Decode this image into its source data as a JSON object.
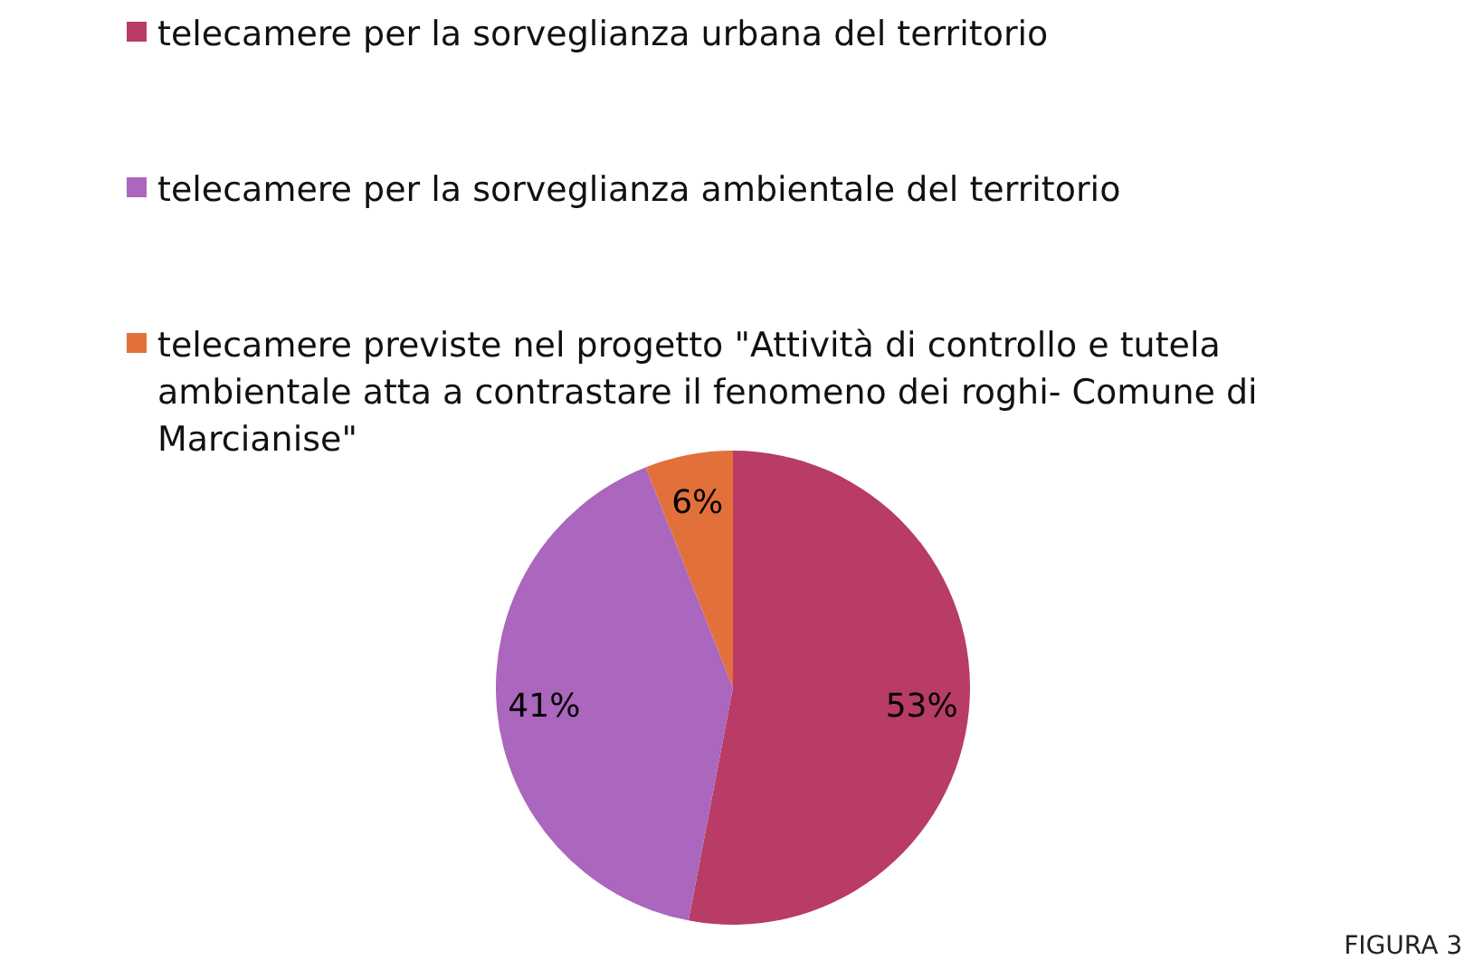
{
  "chart_data": {
    "type": "pie",
    "categories": [
      "telecamere per la sorveglianza urbana del territorio",
      "telecamere per la sorveglianza ambientale del territorio",
      "telecamere previste nel progetto \"Attività di controllo e tutela ambientale atta a contrastare il fenomeno dei roghi- Comune di Marcianise\""
    ],
    "values": [
      53,
      41,
      6
    ],
    "colors": [
      "#b83c66",
      "#ab66bd",
      "#e2703a"
    ],
    "value_labels": [
      "53%",
      "41%",
      "6%"
    ],
    "legend": "top left",
    "annotations": [
      "FIGURA 3"
    ]
  }
}
